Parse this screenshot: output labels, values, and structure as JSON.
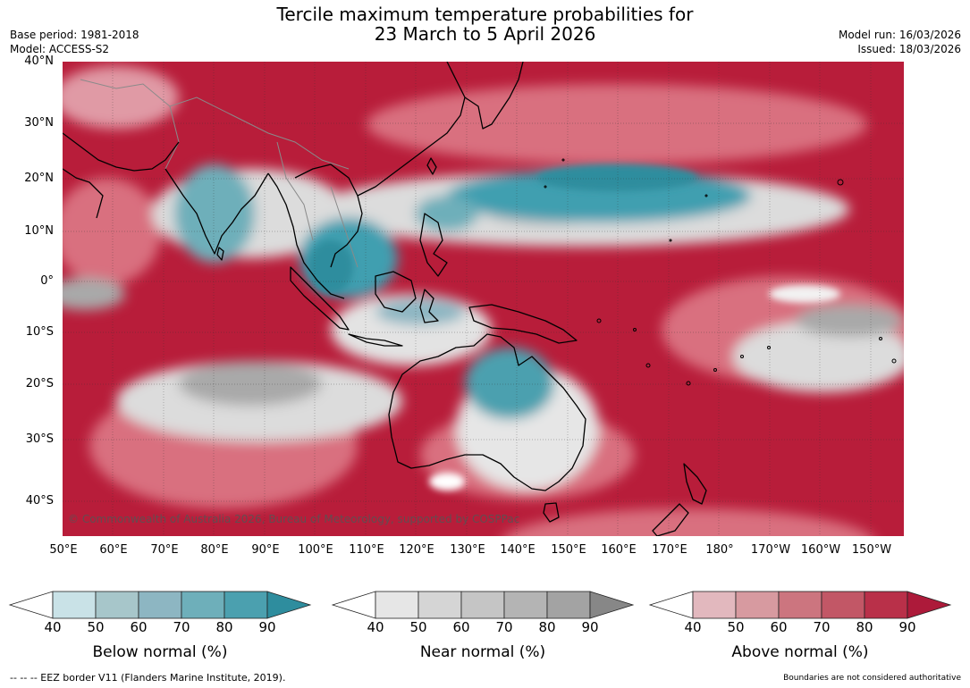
{
  "title": {
    "line1": "Tercile maximum temperature probabilities for",
    "line2": "23 March to 5 April 2026"
  },
  "meta": {
    "base_period": "Base period: 1981-2018",
    "model": "Model: ACCESS-S2",
    "model_run": "Model run: 16/03/2026",
    "issued": "Issued: 18/03/2026"
  },
  "map": {
    "lat_labels": [
      "40°N",
      "30°N",
      "20°N",
      "10°N",
      "0°",
      "10°S",
      "20°S",
      "30°S",
      "40°S"
    ],
    "lon_labels": [
      "50°E",
      "60°E",
      "70°E",
      "80°E",
      "90°E",
      "100°E",
      "110°E",
      "120°E",
      "130°E",
      "140°E",
      "150°E",
      "160°E",
      "170°E",
      "180°",
      "170°W",
      "160°W",
      "150°W"
    ],
    "copyright": "© Commonwealth of Australia 2026, Bureau of Meteorology, supported by COSPPac",
    "colors": {
      "above_dominant": "#b81d3a",
      "above_mid": "#d9707f",
      "above_light": "#eab4bd",
      "near": "#a9a9a9",
      "near_light": "#dcdcdc",
      "below": "#3f9fb0",
      "below_light": "#9fd0d9",
      "coast": "#000000",
      "border": "#8a8a8a"
    }
  },
  "legend": {
    "ticks": [
      "40",
      "50",
      "60",
      "70",
      "80",
      "90"
    ],
    "bars": [
      {
        "label": "Below normal (%)",
        "colors": [
          "#c9e2e7",
          "#a7c6ca",
          "#8db6c2",
          "#6eafba",
          "#4ba0af"
        ],
        "end": "#2e8d9e"
      },
      {
        "label": "Near normal (%)",
        "colors": [
          "#e6e6e6",
          "#d5d5d5",
          "#c5c5c5",
          "#b4b4b4",
          "#a3a3a3"
        ],
        "end": "#878787"
      },
      {
        "label": "Above normal (%)",
        "colors": [
          "#e2b8be",
          "#d79aa0",
          "#cc757f",
          "#c25766",
          "#b93049"
        ],
        "end": "#ad1a3a"
      }
    ]
  },
  "footer": {
    "eez_note": "--  --  -- EEZ border V11 (Flanders Marine Institute, 2019).",
    "disclaimer": "Boundaries are not considered authoritative"
  }
}
